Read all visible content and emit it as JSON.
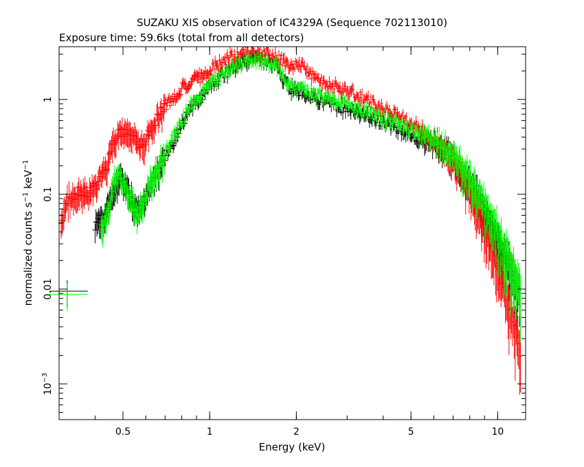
{
  "chart_data": {
    "type": "scatter",
    "title": "SUZAKU XIS observation of IC4329A (Sequence 702113010)",
    "subtitle": "Exposure time: 59.6ks (total from all detectors)",
    "xlabel": "Energy (keV)",
    "ylabel_parts": [
      "normalized counts s",
      "−1",
      " keV",
      "−1"
    ],
    "x_scale": "log",
    "y_scale": "log",
    "xlim": [
      0.3,
      12.5
    ],
    "ylim": [
      0.00042,
      3.6
    ],
    "x_ticks": [
      {
        "value": 0.5,
        "label": "0.5"
      },
      {
        "value": 1,
        "label": "1"
      },
      {
        "value": 2,
        "label": "2"
      },
      {
        "value": 5,
        "label": "5"
      },
      {
        "value": 10,
        "label": "10"
      }
    ],
    "y_ticks": [
      {
        "value": 1,
        "base": "1",
        "exp": ""
      },
      {
        "value": 0.1,
        "base": "0.1",
        "exp": ""
      },
      {
        "value": 0.01,
        "base": "0.01",
        "exp": ""
      },
      {
        "value": 0.001,
        "base": "10",
        "exp": "−3"
      }
    ],
    "grid": false,
    "legend": "none",
    "series": [
      {
        "color": "#000000",
        "points": [
          [
            0.32,
            0.0095
          ],
          [
            0.4,
            0.048
          ],
          [
            0.43,
            0.062
          ],
          [
            0.47,
            0.12
          ],
          [
            0.49,
            0.15
          ],
          [
            0.52,
            0.11
          ],
          [
            0.55,
            0.072
          ],
          [
            0.58,
            0.075
          ],
          [
            0.62,
            0.12
          ],
          [
            0.66,
            0.18
          ],
          [
            0.7,
            0.25
          ],
          [
            0.75,
            0.36
          ],
          [
            0.8,
            0.55
          ],
          [
            0.85,
            0.78
          ],
          [
            0.9,
            0.95
          ],
          [
            0.95,
            1.15
          ],
          [
            1.0,
            1.35
          ],
          [
            1.1,
            1.75
          ],
          [
            1.2,
            2.15
          ],
          [
            1.3,
            2.45
          ],
          [
            1.4,
            2.6
          ],
          [
            1.5,
            2.6
          ],
          [
            1.6,
            2.5
          ],
          [
            1.7,
            2.25
          ],
          [
            1.8,
            1.55
          ],
          [
            1.9,
            1.35
          ],
          [
            2.0,
            1.25
          ],
          [
            2.2,
            1.1
          ],
          [
            2.5,
            0.98
          ],
          [
            2.8,
            0.85
          ],
          [
            3.0,
            0.8
          ],
          [
            3.5,
            0.68
          ],
          [
            4.0,
            0.58
          ],
          [
            4.5,
            0.5
          ],
          [
            5.0,
            0.44
          ],
          [
            5.5,
            0.38
          ],
          [
            6.0,
            0.34
          ],
          [
            6.5,
            0.3
          ],
          [
            7.0,
            0.24
          ],
          [
            7.5,
            0.18
          ],
          [
            8.0,
            0.13
          ],
          [
            8.5,
            0.095
          ],
          [
            9.0,
            0.068
          ],
          [
            9.5,
            0.048
          ],
          [
            10.0,
            0.032
          ],
          [
            10.5,
            0.024
          ],
          [
            11.0,
            0.017
          ],
          [
            11.5,
            0.012
          ],
          [
            12.0,
            0.0085
          ]
        ]
      },
      {
        "color": "#ff0000",
        "points": [
          [
            0.305,
            0.05
          ],
          [
            0.32,
            0.085
          ],
          [
            0.34,
            0.095
          ],
          [
            0.36,
            0.11
          ],
          [
            0.38,
            0.1
          ],
          [
            0.4,
            0.12
          ],
          [
            0.42,
            0.16
          ],
          [
            0.44,
            0.2
          ],
          [
            0.46,
            0.32
          ],
          [
            0.48,
            0.42
          ],
          [
            0.5,
            0.45
          ],
          [
            0.52,
            0.48
          ],
          [
            0.55,
            0.4
          ],
          [
            0.58,
            0.33
          ],
          [
            0.6,
            0.38
          ],
          [
            0.63,
            0.5
          ],
          [
            0.66,
            0.65
          ],
          [
            0.7,
            0.85
          ],
          [
            0.75,
            1.05
          ],
          [
            0.8,
            1.3
          ],
          [
            0.85,
            1.45
          ],
          [
            0.9,
            1.65
          ],
          [
            1.0,
            2.0
          ],
          [
            1.1,
            2.45
          ],
          [
            1.2,
            2.8
          ],
          [
            1.3,
            3.05
          ],
          [
            1.4,
            3.2
          ],
          [
            1.5,
            3.25
          ],
          [
            1.6,
            3.05
          ],
          [
            1.7,
            2.7
          ],
          [
            1.8,
            2.55
          ],
          [
            1.9,
            2.4
          ],
          [
            2.0,
            2.35
          ],
          [
            2.2,
            2.0
          ],
          [
            2.4,
            1.55
          ],
          [
            2.7,
            1.35
          ],
          [
            3.0,
            1.2
          ],
          [
            3.5,
            0.98
          ],
          [
            4.0,
            0.82
          ],
          [
            4.5,
            0.68
          ],
          [
            5.0,
            0.56
          ],
          [
            5.5,
            0.46
          ],
          [
            6.0,
            0.38
          ],
          [
            6.5,
            0.3
          ],
          [
            7.0,
            0.22
          ],
          [
            7.5,
            0.15
          ],
          [
            8.0,
            0.1
          ],
          [
            8.5,
            0.07
          ],
          [
            9.0,
            0.045
          ],
          [
            9.5,
            0.03
          ],
          [
            10.0,
            0.018
          ],
          [
            10.5,
            0.011
          ],
          [
            11.0,
            0.0065
          ],
          [
            11.5,
            0.0038
          ],
          [
            12.0,
            0.0022
          ]
        ]
      },
      {
        "color": "#00ff00",
        "points": [
          [
            0.32,
            0.0088
          ],
          [
            0.42,
            0.045
          ],
          [
            0.44,
            0.057
          ],
          [
            0.46,
            0.13
          ],
          [
            0.48,
            0.16
          ],
          [
            0.5,
            0.13
          ],
          [
            0.53,
            0.095
          ],
          [
            0.56,
            0.065
          ],
          [
            0.59,
            0.08
          ],
          [
            0.62,
            0.13
          ],
          [
            0.66,
            0.19
          ],
          [
            0.7,
            0.27
          ],
          [
            0.75,
            0.4
          ],
          [
            0.8,
            0.58
          ],
          [
            0.85,
            0.82
          ],
          [
            0.9,
            1.0
          ],
          [
            0.95,
            1.2
          ],
          [
            1.0,
            1.4
          ],
          [
            1.1,
            1.85
          ],
          [
            1.2,
            2.25
          ],
          [
            1.3,
            2.5
          ],
          [
            1.4,
            2.65
          ],
          [
            1.5,
            2.65
          ],
          [
            1.6,
            2.55
          ],
          [
            1.7,
            2.35
          ],
          [
            1.8,
            1.65
          ],
          [
            1.9,
            1.45
          ],
          [
            2.0,
            1.35
          ],
          [
            2.2,
            1.2
          ],
          [
            2.5,
            1.05
          ],
          [
            2.8,
            0.92
          ],
          [
            3.0,
            0.86
          ],
          [
            3.5,
            0.74
          ],
          [
            4.0,
            0.63
          ],
          [
            4.5,
            0.55
          ],
          [
            5.0,
            0.48
          ],
          [
            5.5,
            0.42
          ],
          [
            6.0,
            0.37
          ],
          [
            6.5,
            0.33
          ],
          [
            7.0,
            0.27
          ],
          [
            7.5,
            0.2
          ],
          [
            8.0,
            0.15
          ],
          [
            8.5,
            0.11
          ],
          [
            9.0,
            0.078
          ],
          [
            9.5,
            0.056
          ],
          [
            10.0,
            0.04
          ],
          [
            10.5,
            0.028
          ],
          [
            11.0,
            0.02
          ],
          [
            11.5,
            0.014
          ],
          [
            12.0,
            0.0095
          ]
        ]
      }
    ]
  }
}
